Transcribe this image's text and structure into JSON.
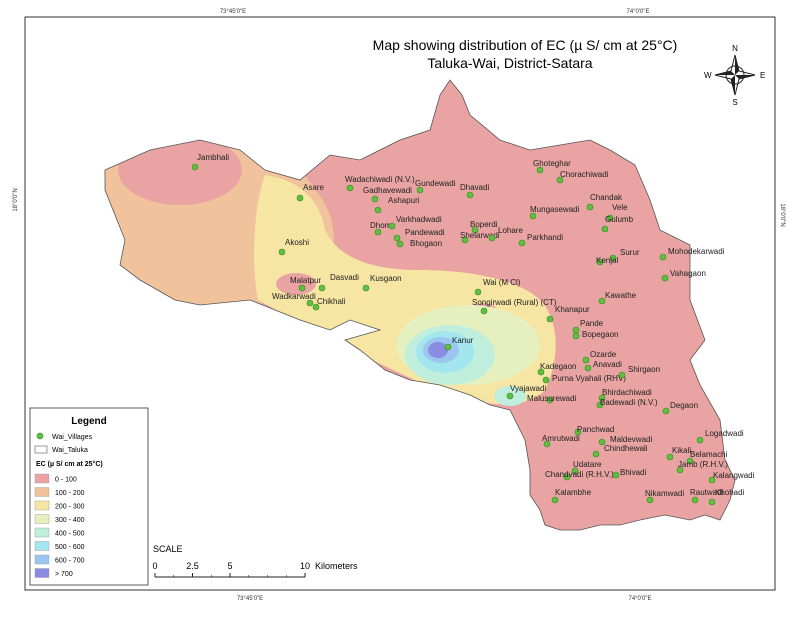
{
  "title": {
    "line1": "Map showing distribution of EC (µ S/ cm at 25°C)",
    "line2": "Taluka-Wai, District-Satara"
  },
  "compass": {
    "n": "N",
    "s": "S",
    "e": "E",
    "w": "W"
  },
  "graticule": {
    "top_left": "73°45'0\"E",
    "top_right": "74°0'0\"E",
    "bottom_left": "73°45'0\"E",
    "bottom_right": "74°0'0\"E",
    "left": "18°0'0\"N",
    "right": "18°0'0\"N"
  },
  "villages": [
    "Jambhali",
    "Asare",
    "Wadachiwadi (N.V.)",
    "Gadhavewadi",
    "Ashapuri",
    "Gundewadi",
    "Dhavadi",
    "Ghoteghar",
    "Chorachiwadi",
    "Chandak",
    "Vele",
    "Gulumb",
    "Mungasewadi",
    "Dhom",
    "Varkhadwadi",
    "Pandewadi",
    "Bhogaon",
    "Boperdi",
    "Shelarwadi",
    "Lohare",
    "Parkhandi",
    "Surur",
    "Kenjal",
    "Mohodekarwadi",
    "Vahagaon",
    "Akoshi",
    "Malatpur",
    "Dasvadi",
    "Kusgaon",
    "Wadkarwadi",
    "Chikhali",
    "Wai (M Cl)",
    "Songirwadi (Rural) (CT)",
    "Khanapur",
    "Kawathe",
    "Pande",
    "Bopegaon",
    "Kanur",
    "Ozarde",
    "Anavadi",
    "Kadegaon",
    "Purna Vyahali (RHV)",
    "Shirgaon",
    "Vyajawadi",
    "Malusurewadi",
    "Bhirdachiwadi",
    "Badewadi (N.V.)",
    "Degaon",
    "Panchwad",
    "Amrutwadi",
    "Maldevwadi",
    "Logadwadi",
    "Kikali",
    "Belamachi",
    "Chindhewali",
    "Jamb (R.H.V.)",
    "Udatare",
    "Chandvadi (R.H.V.)",
    "Bhivadi",
    "Kalangwadi",
    "Nikamwadi",
    "Rautwadi",
    "Khohadi",
    "Kalambhe"
  ],
  "legend": {
    "title": "Legend",
    "villages": "Wai_Villages",
    "taluka": "Wai_Taluka",
    "ec_title": "EC (µ S/ cm at 25°C)",
    "classes": [
      {
        "label": "0 - 100",
        "color": "#e9a3a3"
      },
      {
        "label": "100 - 200",
        "color": "#f1c39d"
      },
      {
        "label": "200 - 300",
        "color": "#f6e5a3"
      },
      {
        "label": "300 - 400",
        "color": "#e6f0bf"
      },
      {
        "label": "400 - 500",
        "color": "#bfeedd"
      },
      {
        "label": "500 - 600",
        "color": "#a4e6f0"
      },
      {
        "label": "600 - 700",
        "color": "#9cc6f0"
      },
      {
        "label": "> 700",
        "color": "#8b8be4"
      }
    ]
  },
  "scale": {
    "title": "SCALE",
    "ticks": [
      0,
      2.5,
      5,
      10
    ],
    "unit": "Kilometers"
  }
}
